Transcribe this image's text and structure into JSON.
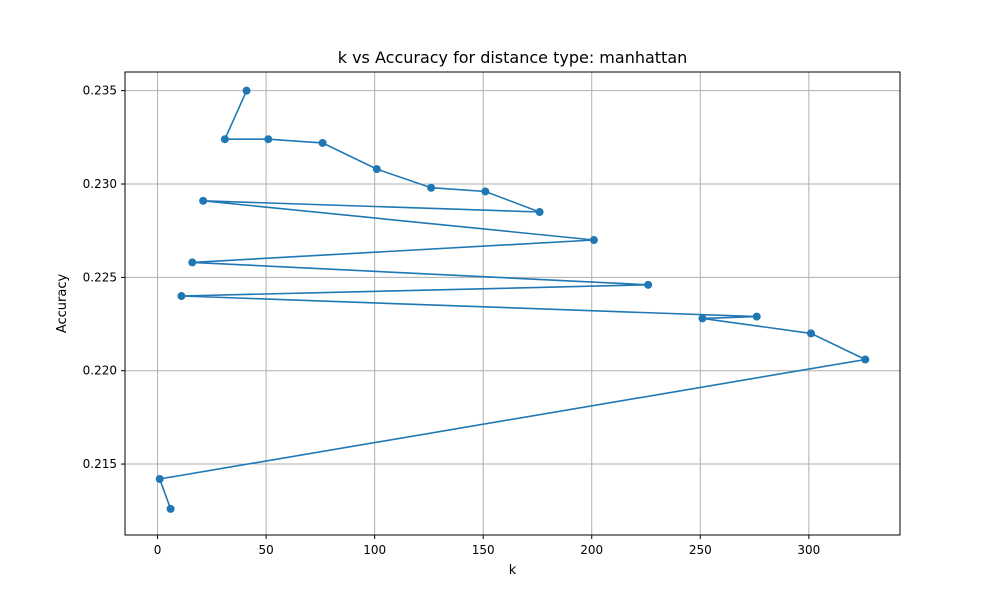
{
  "chart_data": {
    "type": "line",
    "title": "k vs Accuracy for distance type: manhattan",
    "xlabel": "k",
    "ylabel": "Accuracy",
    "xlim": [
      -15,
      342
    ],
    "ylim": [
      0.2112,
      0.236
    ],
    "xticks": [
      0,
      50,
      100,
      150,
      200,
      250,
      300
    ],
    "yticks": [
      0.215,
      0.22,
      0.225,
      0.23,
      0.235
    ],
    "xtick_labels": [
      "0",
      "50",
      "100",
      "150",
      "200",
      "250",
      "300"
    ],
    "ytick_labels": [
      "0.215",
      "0.220",
      "0.225",
      "0.230",
      "0.235"
    ],
    "grid": true,
    "color": "#1f77b4",
    "series": [
      {
        "x": [
          6,
          1,
          326,
          301,
          251,
          276,
          11,
          226,
          16,
          201,
          21,
          176,
          151,
          126,
          101,
          76,
          51,
          31,
          41
        ],
        "y": [
          0.2126,
          0.2142,
          0.2206,
          0.222,
          0.2228,
          0.2229,
          0.224,
          0.2246,
          0.2258,
          0.227,
          0.2291,
          0.2285,
          0.2296,
          0.2298,
          0.2308,
          0.2322,
          0.2324,
          0.2324,
          0.235
        ]
      }
    ]
  }
}
